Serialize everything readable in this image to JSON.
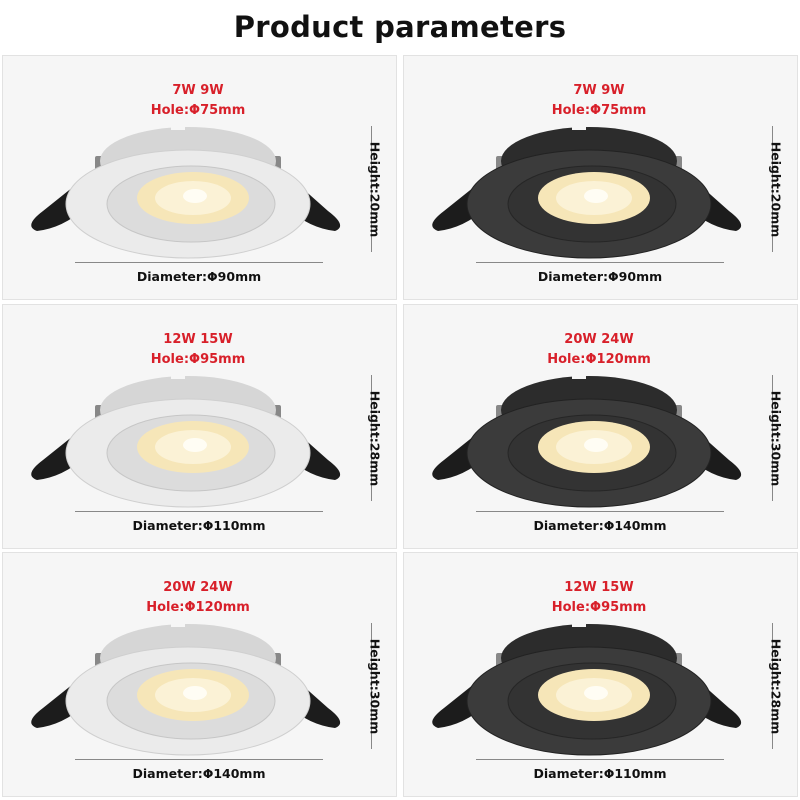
{
  "title": "Product parameters",
  "colors": {
    "spec_text": "#d8202a",
    "white_body": "#e9e9e9",
    "black_body": "#3a3a3a",
    "lens": "#fbf0cf"
  },
  "products": [
    {
      "finish": "white",
      "wattage": "7W 9W",
      "hole": "Hole:Φ75mm",
      "diameter": "Diameter:Φ90mm",
      "height": "Height:20mm"
    },
    {
      "finish": "black",
      "wattage": "7W 9W",
      "hole": "Hole:Φ75mm",
      "diameter": "Diameter:Φ90mm",
      "height": "Height:20mm"
    },
    {
      "finish": "white",
      "wattage": "12W 15W",
      "hole": "Hole:Φ95mm",
      "diameter": "Diameter:Φ110mm",
      "height": "Height:28mm"
    },
    {
      "finish": "black",
      "wattage": "20W 24W",
      "hole": "Hole:Φ120mm",
      "diameter": "Diameter:Φ140mm",
      "height": "Height:30mm"
    },
    {
      "finish": "white",
      "wattage": "20W 24W",
      "hole": "Hole:Φ120mm",
      "diameter": "Diameter:Φ140mm",
      "height": "Height:30mm"
    },
    {
      "finish": "black",
      "wattage": "12W 15W",
      "hole": "Hole:Φ95mm",
      "diameter": "Diameter:Φ110mm",
      "height": "Height:28mm"
    }
  ]
}
